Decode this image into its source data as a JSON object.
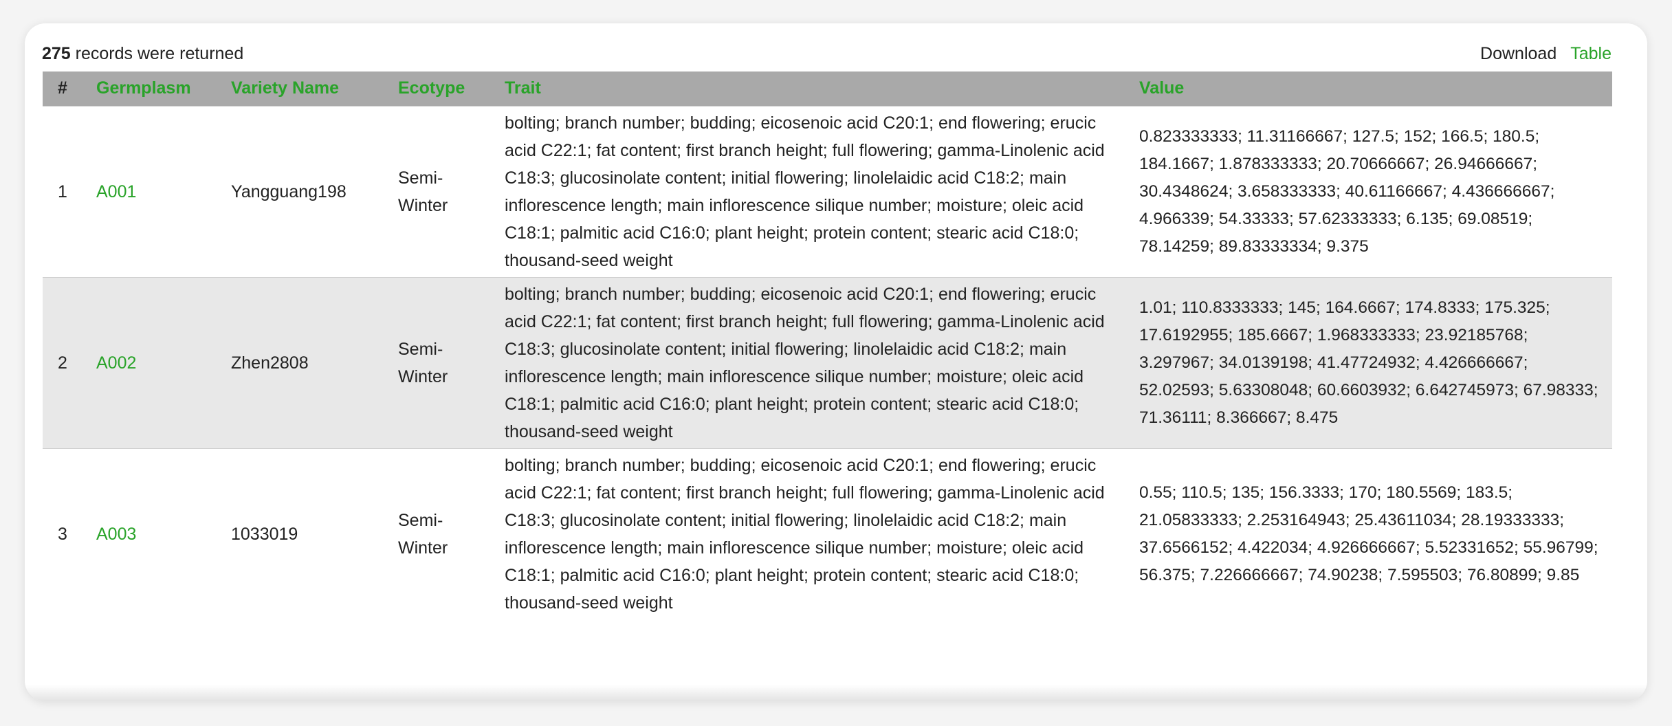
{
  "header": {
    "count": "275",
    "count_suffix": "records were returned",
    "download_label": "Download",
    "table_label": "Table"
  },
  "columns": {
    "num": "#",
    "germplasm": "Germplasm",
    "variety": "Variety Name",
    "ecotype": "Ecotype",
    "trait": "Trait",
    "value": "Value"
  },
  "rows": [
    {
      "num": "1",
      "germplasm": "A001",
      "variety": "Yangguang198",
      "ecotype": "Semi-Winter",
      "trait": "bolting; branch number; budding; eicosenoic acid C20:1; end flowering; erucic acid C22:1; fat content; first branch height; full flowering; gamma-Linolenic acid C18:3; glucosinolate content; initial flowering; linolelaidic acid C18:2; main inflorescence length; main inflorescence silique number; moisture; oleic acid C18:1; palmitic acid C16:0; plant height; protein content; stearic acid C18:0; thousand-seed weight",
      "value": "0.823333333; 11.31166667; 127.5; 152; 166.5; 180.5; 184.1667; 1.878333333; 20.70666667; 26.94666667; 30.4348624; 3.658333333; 40.61166667; 4.436666667; 4.966339; 54.33333; 57.62333333; 6.135; 69.08519; 78.14259; 89.83333334; 9.375"
    },
    {
      "num": "2",
      "germplasm": "A002",
      "variety": "Zhen2808",
      "ecotype": "Semi-Winter",
      "trait": "bolting; branch number; budding; eicosenoic acid C20:1; end flowering; erucic acid C22:1; fat content; first branch height; full flowering; gamma-Linolenic acid C18:3; glucosinolate content; initial flowering; linolelaidic acid C18:2; main inflorescence length; main inflorescence silique number; moisture; oleic acid C18:1; palmitic acid C16:0; plant height; protein content; stearic acid C18:0; thousand-seed weight",
      "value": "1.01; 110.8333333; 145; 164.6667; 174.8333; 175.325; 17.6192955; 185.6667; 1.968333333; 23.92185768; 3.297967; 34.0139198; 41.47724932; 4.426666667; 52.02593; 5.63308048; 60.6603932; 6.642745973; 67.98333; 71.36111; 8.366667; 8.475"
    },
    {
      "num": "3",
      "germplasm": "A003",
      "variety": "1033019",
      "ecotype": "Semi-Winter",
      "trait": "bolting; branch number; budding; eicosenoic acid C20:1; end flowering; erucic acid C22:1; fat content; first branch height; full flowering; gamma-Linolenic acid C18:3; glucosinolate content; initial flowering; linolelaidic acid C18:2; main inflorescence length; main inflorescence silique number; moisture; oleic acid C18:1; palmitic acid C16:0; plant height; protein content; stearic acid C18:0; thousand-seed weight",
      "value": "0.55; 110.5; 135; 156.3333; 170; 180.5569; 183.5; 21.05833333; 2.253164943; 25.43611034; 28.19333333; 37.6566152; 4.422034; 4.926666667; 5.52331652; 55.96799; 56.375; 7.226666667; 74.90238; 7.595503; 76.80899; 9.85"
    }
  ],
  "colors": {
    "accent": "#29a329",
    "header_bg": "#a9a9a9",
    "alt_row": "#e8e8e8"
  }
}
